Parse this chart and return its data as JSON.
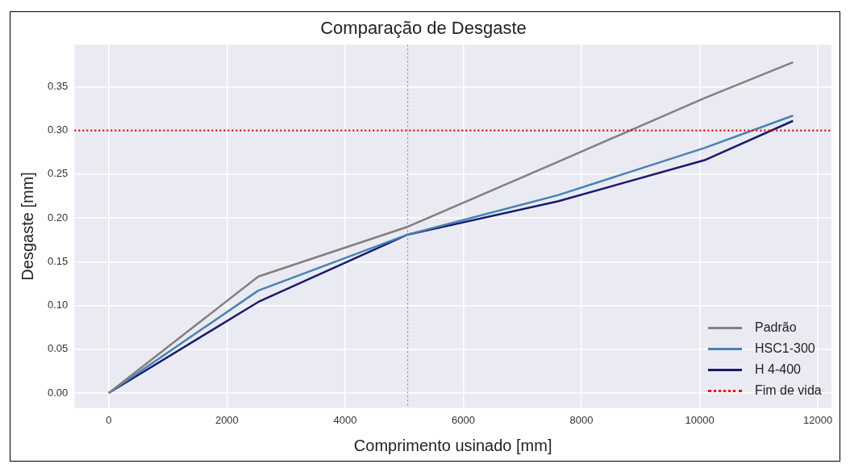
{
  "chart_data": {
    "type": "line",
    "title": "Comparação de Desgaste",
    "xlabel": "Comprimento usinado [mm]",
    "ylabel": "Desgaste [mm]",
    "x": [
      0,
      2530,
      5060,
      7600,
      10080,
      11580
    ],
    "series": [
      {
        "name": "Padrão",
        "color": "#808080",
        "values": [
          0,
          0.133,
          0.19,
          0.264,
          0.337,
          0.378
        ]
      },
      {
        "name": "HSC1-300",
        "color": "#4682b4",
        "values": [
          0,
          0.117,
          0.181,
          0.226,
          0.28,
          0.317
        ]
      },
      {
        "name": "H 4-400",
        "color": "#191970",
        "values": [
          0,
          0.104,
          0.181,
          0.219,
          0.266,
          0.311
        ]
      }
    ],
    "ref_lines": [
      {
        "axis": "y",
        "value": 0.3,
        "label": "Fim de vida",
        "color": "#ff0000",
        "line_style": "dotted"
      },
      {
        "axis": "x",
        "value": 5060,
        "color": "#bf3fff",
        "line_style": "dotted"
      }
    ],
    "xlim": [
      -580,
      12230
    ],
    "xticks": [
      0,
      2000,
      4000,
      6000,
      8000,
      10000,
      12000
    ],
    "ylim": [
      -0.017,
      0.398
    ],
    "yticks": [
      {
        "value": 0,
        "label": "0.00"
      },
      {
        "value": 0.05,
        "label": "0.05"
      },
      {
        "value": 0.1,
        "label": "0.10"
      },
      {
        "value": 0.15,
        "label": "0.15"
      },
      {
        "value": 0.2,
        "label": "0.20"
      },
      {
        "value": 0.25,
        "label": "0.25"
      },
      {
        "value": 0.3,
        "label": "0.30"
      },
      {
        "value": 0.35,
        "label": "0.35"
      }
    ],
    "grid": true,
    "legend": "bottom right",
    "line_style": "solid",
    "marker": "none"
  }
}
